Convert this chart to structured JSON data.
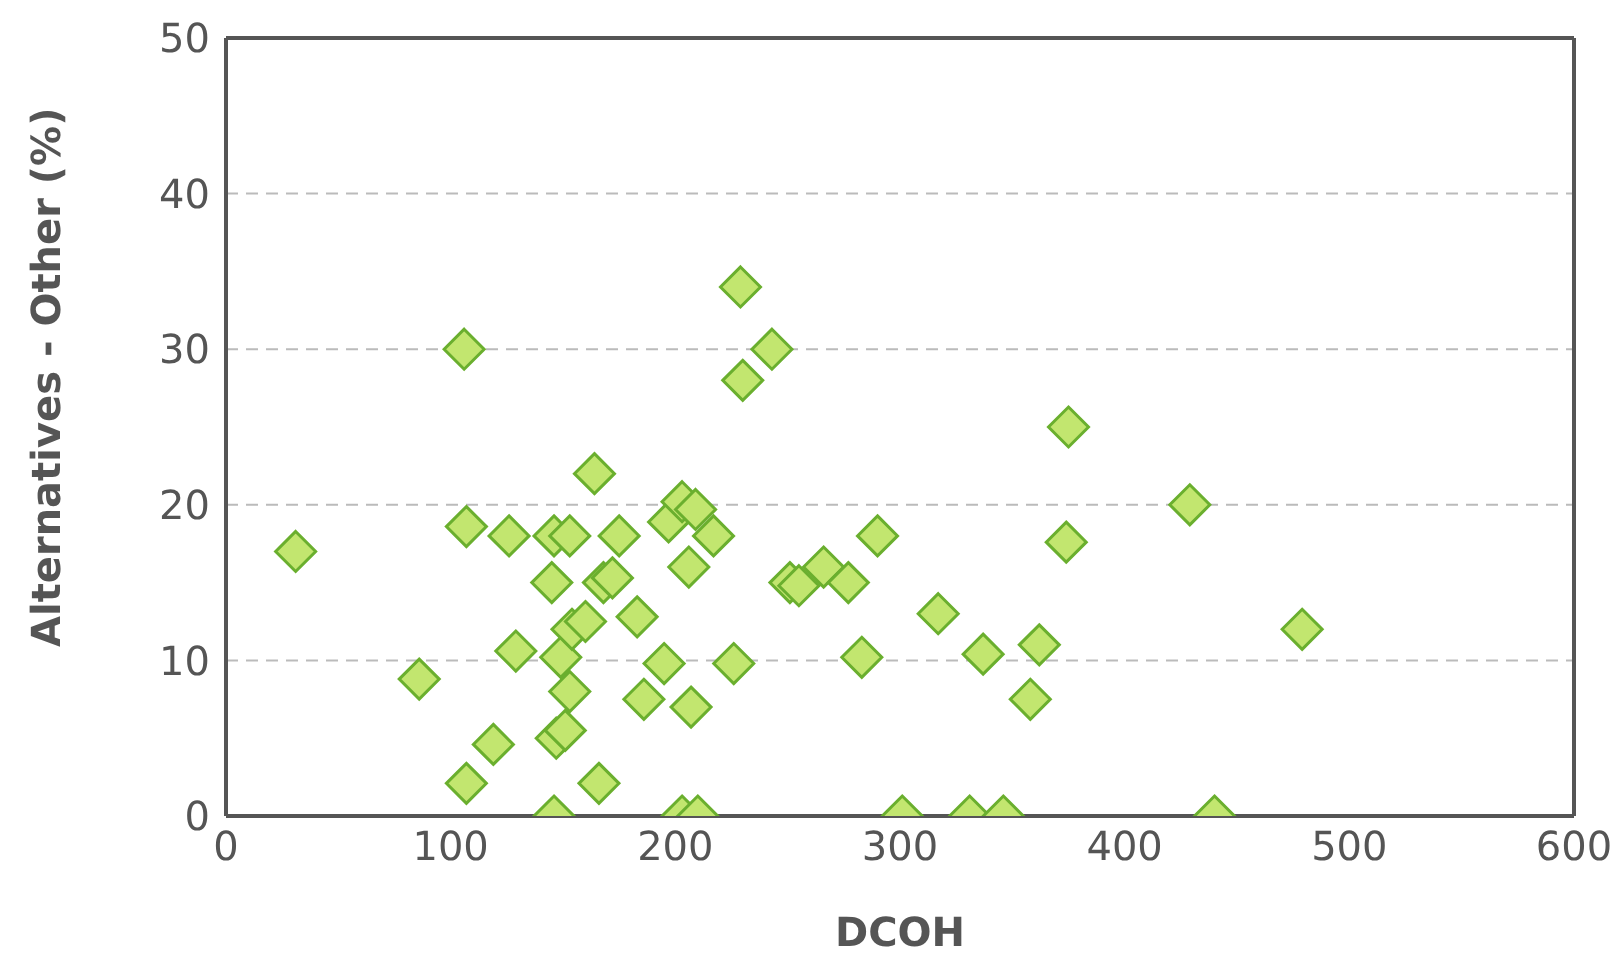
{
  "chart_data": {
    "type": "scatter",
    "xlabel": "DCOH",
    "ylabel": "Alternatives - Other (%)",
    "x": [
      31,
      86,
      106,
      107,
      107,
      119,
      126,
      129,
      146,
      145,
      146,
      147,
      149,
      151,
      153,
      153,
      154,
      160,
      164,
      166,
      168,
      172,
      175,
      183,
      186,
      195,
      197,
      203,
      203,
      209,
      206,
      207,
      210,
      217,
      226,
      229,
      230,
      243,
      251,
      255,
      266,
      277,
      283,
      290,
      301,
      317,
      331,
      337,
      346,
      358,
      362,
      375,
      374,
      429,
      440,
      479
    ],
    "series": [
      {
        "color": "#6aaf2e",
        "values": [
          17,
          8.8,
          30,
          18.6,
          2.1,
          4.6,
          18,
          10.6,
          0,
          15,
          18,
          5,
          10.2,
          5.5,
          8,
          18,
          12,
          12.5,
          22,
          2.1,
          15,
          15.3,
          18,
          12.8,
          7.5,
          9.8,
          18.9,
          0,
          20.2,
          19.7,
          16,
          7,
          0,
          18,
          9.8,
          34,
          28,
          30,
          15,
          14.8,
          16,
          15,
          10.2,
          18,
          0,
          13,
          0,
          10.4,
          0,
          7.5,
          11,
          25,
          17.6,
          20,
          0,
          12
        ]
      }
    ],
    "xlim": [
      0,
      600
    ],
    "xticks": [
      0,
      100,
      200,
      300,
      400,
      500,
      600
    ],
    "ylim": [
      0,
      50
    ],
    "yticks": [
      0,
      10,
      20,
      30,
      40,
      50
    ],
    "grid": "y",
    "marker": "diamond"
  }
}
